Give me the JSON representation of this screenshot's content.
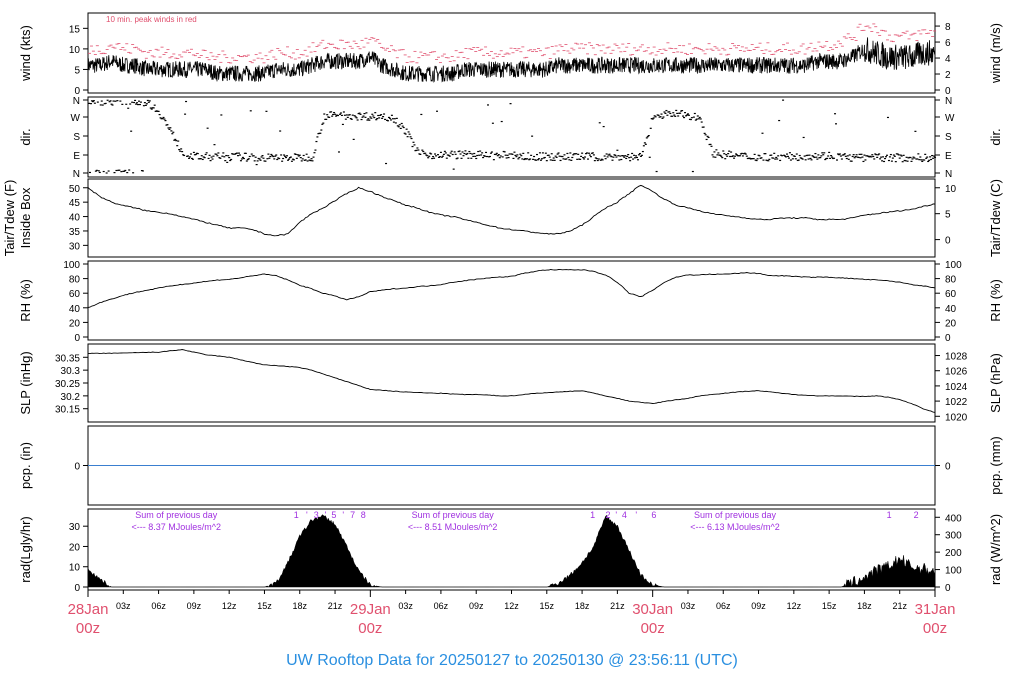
{
  "title": "UW Rooftop Data for 20250127  to  20250130 @ 23:56:11  (UTC)",
  "colors": {
    "title": "#2a8fe0",
    "date": "#e0506e",
    "gust": "#e0506e",
    "pcp": "#3a7fd0",
    "annot": "#a030e0",
    "ink": "#000000"
  },
  "chart_data": [
    {
      "type": "line",
      "name": "wind",
      "ylabel": "wind (kts)",
      "ylabel_right": "wind (m/s)",
      "ylim": [
        0,
        18
      ],
      "yticks": [
        0,
        5,
        10,
        15
      ],
      "yticks_right": [
        0,
        2,
        4,
        6,
        8
      ],
      "annotation": "10 min. peak winds in red",
      "hourly_mean_kts": [
        6,
        6,
        7,
        6,
        6,
        5,
        5,
        5,
        5,
        5,
        5,
        4,
        4,
        4,
        4,
        4,
        5,
        5,
        5,
        6,
        7,
        7,
        7,
        7,
        8,
        6,
        5,
        4,
        4,
        4,
        4,
        4,
        5,
        5,
        5,
        5,
        5,
        5,
        5,
        5,
        6,
        6,
        6,
        6,
        6,
        6,
        6,
        6,
        6,
        6,
        6,
        6,
        6,
        6,
        6,
        6,
        6,
        6,
        6,
        6,
        6,
        6,
        7,
        7,
        7,
        8,
        10,
        9,
        8,
        8,
        8,
        9,
        9
      ],
      "hourly_gust_kts": [
        10,
        10,
        11,
        10,
        10,
        9,
        9,
        9,
        9,
        9,
        8,
        8,
        8,
        8,
        8,
        8,
        9,
        9,
        9,
        10,
        11,
        11,
        11,
        11,
        12,
        10,
        9,
        8,
        8,
        8,
        8,
        8,
        9,
        9,
        9,
        9,
        9,
        9,
        9,
        9,
        10,
        10,
        10,
        10,
        10,
        10,
        10,
        10,
        10,
        10,
        10,
        10,
        10,
        10,
        10,
        10,
        10,
        10,
        10,
        10,
        10,
        10,
        11,
        11,
        12,
        13,
        16,
        15,
        13,
        13,
        13,
        14,
        14
      ]
    },
    {
      "type": "scatter",
      "name": "dir",
      "ylabel": "dir.",
      "ylabel_right": "dir.",
      "yticks": [
        "N",
        "E",
        "S",
        "W",
        "N"
      ],
      "hourly_dir_deg": [
        355,
        355,
        355,
        355,
        355,
        350,
        300,
        200,
        100,
        80,
        80,
        80,
        80,
        80,
        75,
        75,
        75,
        75,
        75,
        80,
        280,
        285,
        285,
        280,
        280,
        280,
        270,
        200,
        100,
        90,
        90,
        90,
        90,
        90,
        85,
        85,
        90,
        80,
        80,
        80,
        80,
        80,
        80,
        80,
        80,
        80,
        80,
        80,
        285,
        290,
        290,
        285,
        270,
        100,
        90,
        85,
        80,
        80,
        80,
        80,
        80,
        85,
        85,
        85,
        80,
        75,
        75,
        75,
        75,
        75,
        75,
        75,
        75
      ]
    },
    {
      "type": "line",
      "name": "temp",
      "ylabel": "Tair/Tdew (F)",
      "ylabel2": "Inside Box",
      "ylabel_right": "Tair/Tdew (C)",
      "ylim": [
        27,
        52
      ],
      "yticks": [
        30,
        35,
        40,
        45,
        50
      ],
      "yticks_right": [
        0,
        5,
        10
      ],
      "hourly_F": [
        50,
        47,
        45,
        43.8,
        43,
        42,
        41.5,
        41,
        40,
        39,
        38,
        37,
        36,
        36,
        35.5,
        34,
        33.3,
        34,
        38,
        41,
        43,
        45.5,
        48,
        50,
        48.7,
        47,
        45.5,
        44,
        43,
        41.5,
        40.5,
        40,
        39,
        38,
        37,
        36,
        35.5,
        35,
        34.5,
        34,
        34,
        35,
        37,
        40,
        43,
        45,
        48,
        51,
        48.7,
        46,
        44,
        43,
        42,
        41,
        40.5,
        40,
        39.5,
        39,
        39,
        39.5,
        39.5,
        39.5,
        39,
        39,
        39,
        39.5,
        40.5,
        41,
        41.5,
        42,
        42.5,
        43.5,
        44.5
      ]
    },
    {
      "type": "line",
      "name": "rh",
      "ylabel": "RH (%)",
      "ylabel_right": "RH (%)",
      "ylim": [
        0,
        100
      ],
      "yticks": [
        0,
        20,
        40,
        60,
        80,
        100
      ],
      "yticks_right": [
        0,
        20,
        40,
        60,
        80,
        100
      ],
      "hourly_pct": [
        40,
        47,
        52,
        57,
        61,
        64,
        67,
        70,
        72,
        74,
        76,
        78,
        79,
        81,
        84,
        86,
        84,
        78,
        71,
        66,
        60,
        56,
        51,
        55,
        62,
        64,
        66,
        67,
        69,
        70,
        72,
        75,
        77,
        79,
        81,
        82,
        83,
        87,
        90,
        92,
        92,
        92,
        92,
        90,
        85,
        75,
        60,
        55,
        64,
        75,
        82,
        85,
        85,
        86,
        86,
        87,
        88,
        87,
        84,
        84,
        83,
        82,
        82,
        82,
        81,
        80,
        79,
        78,
        77,
        75,
        72,
        70,
        67
      ]
    },
    {
      "type": "line",
      "name": "slp",
      "ylabel": "SLP (inHg)",
      "ylabel_right": "SLP (hPa)",
      "ylim": [
        30.11,
        30.39
      ],
      "yticks": [
        30.15,
        30.2,
        30.25,
        30.3,
        30.35
      ],
      "yticks_right": [
        1020,
        1022,
        1024,
        1026,
        1028
      ],
      "hourly_inHg": [
        30.365,
        30.365,
        30.366,
        30.366,
        30.368,
        30.369,
        30.37,
        30.375,
        30.38,
        30.37,
        30.36,
        30.355,
        30.35,
        30.34,
        30.33,
        30.32,
        30.318,
        30.314,
        30.31,
        30.3,
        30.285,
        30.27,
        30.255,
        30.24,
        30.225,
        30.222,
        30.218,
        30.215,
        30.213,
        30.211,
        30.21,
        30.207,
        30.205,
        30.205,
        30.203,
        30.2,
        30.2,
        30.205,
        30.21,
        30.212,
        30.215,
        30.218,
        30.22,
        30.21,
        30.2,
        30.19,
        30.18,
        30.175,
        30.17,
        30.178,
        30.185,
        30.19,
        30.2,
        30.205,
        30.21,
        30.214,
        30.218,
        30.22,
        30.215,
        30.21,
        30.205,
        30.203,
        30.2,
        30.2,
        30.2,
        30.198,
        30.198,
        30.2,
        30.195,
        30.185,
        30.17,
        30.15,
        30.135
      ]
    },
    {
      "type": "line",
      "name": "pcp",
      "ylabel": "pcp. (in)",
      "ylabel_right": "pcp. (mm)",
      "ylim": [
        -1,
        1
      ],
      "yticks": [
        0
      ],
      "yticks_right": [
        0
      ],
      "value_in": 0
    },
    {
      "type": "area",
      "name": "rad",
      "ylabel": "rad(Lgly/hr)",
      "ylabel_right": "rad (W/m^2)",
      "ylim": [
        0,
        37
      ],
      "yticks": [
        0,
        10,
        20,
        30
      ],
      "yticks_right": [
        0,
        100,
        200,
        300,
        400
      ],
      "hourly_lgly": [
        9,
        4,
        0,
        0,
        0,
        0,
        0,
        0,
        0,
        0,
        0,
        0,
        0,
        0,
        0,
        0,
        2,
        12,
        25,
        33,
        35,
        31,
        20,
        8,
        1,
        0,
        0,
        0,
        0,
        0,
        0,
        0,
        0,
        0,
        0,
        0,
        0,
        0,
        0,
        0,
        2,
        6,
        12,
        20,
        35,
        30,
        18,
        6,
        1,
        0,
        0,
        0,
        0,
        0,
        0,
        0,
        0,
        0,
        0,
        0,
        0,
        0,
        0,
        0,
        0,
        2,
        5,
        8,
        10,
        14,
        10,
        9,
        8
      ],
      "daily_sums": [
        {
          "line1": "Sum of previous day",
          "line2": "<--- 8.37 MJoules/m^2",
          "hour": 7.5
        },
        {
          "line1": "Sum of previous day",
          "line2": "<--- 8.51 MJoules/m^2",
          "hour": 31
        },
        {
          "line1": "Sum of previous day",
          "line2": "<--- 6.13 MJoules/m^2",
          "hour": 55
        }
      ],
      "hour_marks": [
        {
          "t": "1",
          "h": 17.7
        },
        {
          "t": "'",
          "h": 18.6
        },
        {
          "t": "3",
          "h": 19.4
        },
        {
          "t": "'",
          "h": 20.2
        },
        {
          "t": "5",
          "h": 20.9
        },
        {
          "t": "'",
          "h": 21.7
        },
        {
          "t": "7",
          "h": 22.5
        },
        {
          "t": "8",
          "h": 23.4
        },
        {
          "t": "1",
          "h": 42.9
        },
        {
          "t": "2",
          "h": 44.2
        },
        {
          "t": "'",
          "h": 44.9
        },
        {
          "t": "4",
          "h": 45.6
        },
        {
          "t": "'",
          "h": 46.6
        },
        {
          "t": "6",
          "h": 48.1
        },
        {
          "t": "1",
          "h": 68.1
        },
        {
          "t": "2",
          "h": 70.4
        }
      ]
    }
  ],
  "xaxis": {
    "hours": [
      0,
      72
    ],
    "minor_labels": [
      "03z",
      "06z",
      "09z",
      "12z",
      "15z",
      "18z",
      "21z"
    ],
    "dates": [
      {
        "d": "28Jan",
        "z": "00z"
      },
      {
        "d": "29Jan",
        "z": "00z"
      },
      {
        "d": "30Jan",
        "z": "00z"
      },
      {
        "d": "31Jan",
        "z": "00z"
      }
    ]
  }
}
